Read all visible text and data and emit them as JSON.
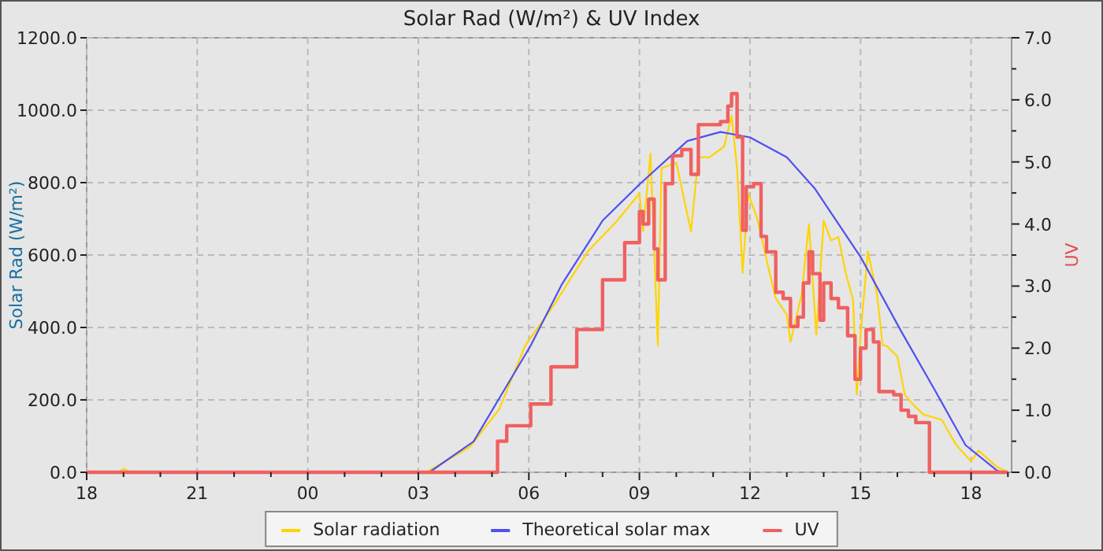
{
  "chart_data": {
    "type": "line",
    "title": "Solar Rad (W/m²) &  UV Index",
    "ylabel": "Solar Rad (W/m²)",
    "y2label": "UV",
    "xlim": [
      18,
      43.1
    ],
    "ylim": [
      0,
      1200
    ],
    "y2lim": [
      0,
      7
    ],
    "xticks": [
      {
        "value": 18,
        "label": "18"
      },
      {
        "value": 19,
        "label": null
      },
      {
        "value": 20,
        "label": null
      },
      {
        "value": 21,
        "label": "21"
      },
      {
        "value": 22,
        "label": null
      },
      {
        "value": 23,
        "label": null
      },
      {
        "value": 24,
        "label": "00"
      },
      {
        "value": 25,
        "label": null
      },
      {
        "value": 26,
        "label": null
      },
      {
        "value": 27,
        "label": "03"
      },
      {
        "value": 28,
        "label": null
      },
      {
        "value": 29,
        "label": null
      },
      {
        "value": 30,
        "label": "06"
      },
      {
        "value": 31,
        "label": null
      },
      {
        "value": 32,
        "label": null
      },
      {
        "value": 33,
        "label": "09"
      },
      {
        "value": 34,
        "label": null
      },
      {
        "value": 35,
        "label": null
      },
      {
        "value": 36,
        "label": "12"
      },
      {
        "value": 37,
        "label": null
      },
      {
        "value": 38,
        "label": null
      },
      {
        "value": 39,
        "label": "15"
      },
      {
        "value": 40,
        "label": null
      },
      {
        "value": 41,
        "label": null
      },
      {
        "value": 42,
        "label": "18"
      },
      {
        "value": 43,
        "label": null
      }
    ],
    "yticks": [
      {
        "value": 0,
        "label": "0.0"
      },
      {
        "value": 200,
        "label": "200.0"
      },
      {
        "value": 400,
        "label": "400.0"
      },
      {
        "value": 600,
        "label": "600.0"
      },
      {
        "value": 800,
        "label": "800.0"
      },
      {
        "value": 1000,
        "label": "1000.0"
      },
      {
        "value": 1200,
        "label": "1200.0"
      }
    ],
    "y2ticks": [
      {
        "value": 0,
        "label": "0.0"
      },
      {
        "value": 0.5,
        "label": null
      },
      {
        "value": 1,
        "label": "1.0"
      },
      {
        "value": 1.5,
        "label": null
      },
      {
        "value": 2,
        "label": "2.0"
      },
      {
        "value": 2.5,
        "label": null
      },
      {
        "value": 3,
        "label": "3.0"
      },
      {
        "value": 3.5,
        "label": null
      },
      {
        "value": 4,
        "label": "4.0"
      },
      {
        "value": 4.5,
        "label": null
      },
      {
        "value": 5,
        "label": "5.0"
      },
      {
        "value": 5.5,
        "label": null
      },
      {
        "value": 6,
        "label": "6.0"
      },
      {
        "value": 6.5,
        "label": null
      },
      {
        "value": 7,
        "label": "7.0"
      }
    ],
    "grid": true,
    "legend": "bottom",
    "marker": "none",
    "line_style": "solid",
    "series": [
      {
        "name": "Solar radiation",
        "color": "#ffd400",
        "x": [
          18.9,
          19.0,
          19.2,
          27.2,
          27.3,
          28.4,
          29.2,
          29.9,
          30.7,
          31.6,
          32.4,
          33.0,
          33.1,
          33.3,
          33.5,
          33.6,
          34.0,
          34.4,
          34.6,
          34.9,
          35.3,
          35.5,
          35.65,
          35.8,
          35.95,
          36.2,
          36.5,
          36.7,
          37.0,
          37.1,
          37.4,
          37.6,
          37.8,
          38.0,
          38.2,
          38.4,
          38.6,
          38.8,
          38.9,
          39.0,
          39.2,
          39.45,
          39.6,
          39.7,
          40.0,
          40.2,
          40.4,
          40.7,
          41.2,
          41.6,
          42.0,
          42.2,
          42.7,
          42.9,
          43.0
        ],
        "values": [
          0,
          10,
          0,
          0,
          5,
          70,
          175,
          350,
          465,
          610,
          695,
          770,
          665,
          880,
          350,
          840,
          855,
          665,
          870,
          870,
          900,
          985,
          840,
          550,
          770,
          700,
          565,
          480,
          435,
          360,
          490,
          685,
          380,
          695,
          640,
          650,
          550,
          475,
          215,
          380,
          610,
          490,
          350,
          350,
          320,
          215,
          190,
          160,
          145,
          75,
          30,
          60,
          15,
          5,
          0
        ]
      },
      {
        "name": "Theoretical solar max",
        "color": "#5050f0",
        "x": [
          27.3,
          28.5,
          29.2,
          30.05,
          30.9,
          32.0,
          33.0,
          34.3,
          35.2,
          36.0,
          37.0,
          37.75,
          39.0,
          40.1,
          41.0,
          41.85,
          42.7,
          42.85
        ],
        "values": [
          0,
          85,
          205,
          350,
          520,
          695,
          795,
          915,
          940,
          925,
          870,
          785,
          595,
          390,
          230,
          75,
          5,
          0
        ]
      },
      {
        "name": "UV",
        "color": "#f06060",
        "type": "step",
        "axis": "y2",
        "x": [
          18,
          29.15,
          29.4,
          30.05,
          30.6,
          31.3,
          32.0,
          32.6,
          33.0,
          33.1,
          33.25,
          33.4,
          33.5,
          33.7,
          33.9,
          34.15,
          34.4,
          34.6,
          35.2,
          35.4,
          35.5,
          35.65,
          35.8,
          35.9,
          36.1,
          36.3,
          36.45,
          36.7,
          36.9,
          37.1,
          37.3,
          37.45,
          37.6,
          37.7,
          37.9,
          38.0,
          38.2,
          38.4,
          38.65,
          38.85,
          39.0,
          39.15,
          39.35,
          39.5,
          39.9,
          40.1,
          40.3,
          40.5,
          40.87,
          43.0
        ],
        "values": [
          0,
          0.5,
          0.75,
          1.1,
          1.7,
          2.3,
          3.1,
          3.7,
          4.2,
          4.0,
          4.4,
          3.6,
          3.1,
          4.65,
          5.1,
          5.2,
          4.8,
          5.6,
          5.65,
          5.9,
          6.1,
          5.4,
          3.9,
          4.6,
          4.65,
          3.8,
          3.55,
          2.9,
          2.8,
          2.35,
          2.5,
          3.05,
          3.55,
          3.2,
          2.45,
          3.05,
          2.8,
          2.65,
          2.2,
          1.5,
          2.0,
          2.3,
          2.1,
          1.3,
          1.25,
          1.0,
          0.9,
          0.8,
          0,
          0
        ]
      }
    ]
  }
}
